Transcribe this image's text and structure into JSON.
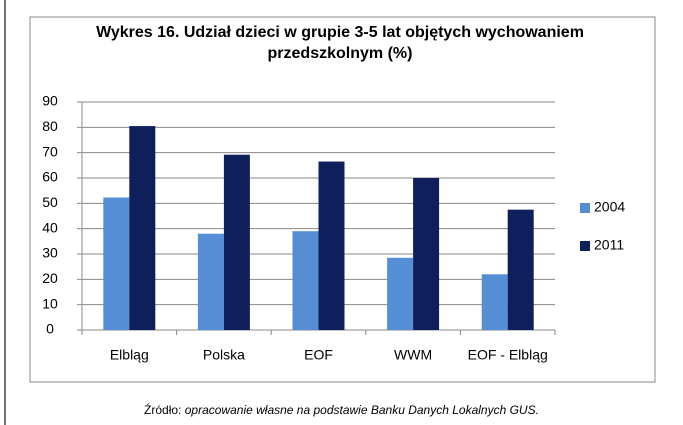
{
  "chart_data": {
    "type": "bar",
    "title": "Wykres 16. Udział dzieci w grupie 3-5 lat objętych wychowaniem przedszkolnym (%)",
    "categories": [
      "Elbląg",
      "Polska",
      "EOF",
      "WWM",
      "EOF - Elbląg"
    ],
    "series": [
      {
        "name": "2004",
        "color": "#558ed5",
        "values": [
          52.3,
          38,
          39,
          28.5,
          22
        ]
      },
      {
        "name": "2011",
        "color": "#0f1f5c",
        "values": [
          80.5,
          69.2,
          66.5,
          60,
          47.5
        ]
      }
    ],
    "ylim": [
      0,
      90
    ],
    "yticks": [
      0,
      10,
      20,
      30,
      40,
      50,
      60,
      70,
      80,
      90
    ],
    "grid": true,
    "legend": "right"
  },
  "source_label": "Źródło:",
  "source": "opracowanie własne na podstawie Banku Danych Lokalnych GUS."
}
